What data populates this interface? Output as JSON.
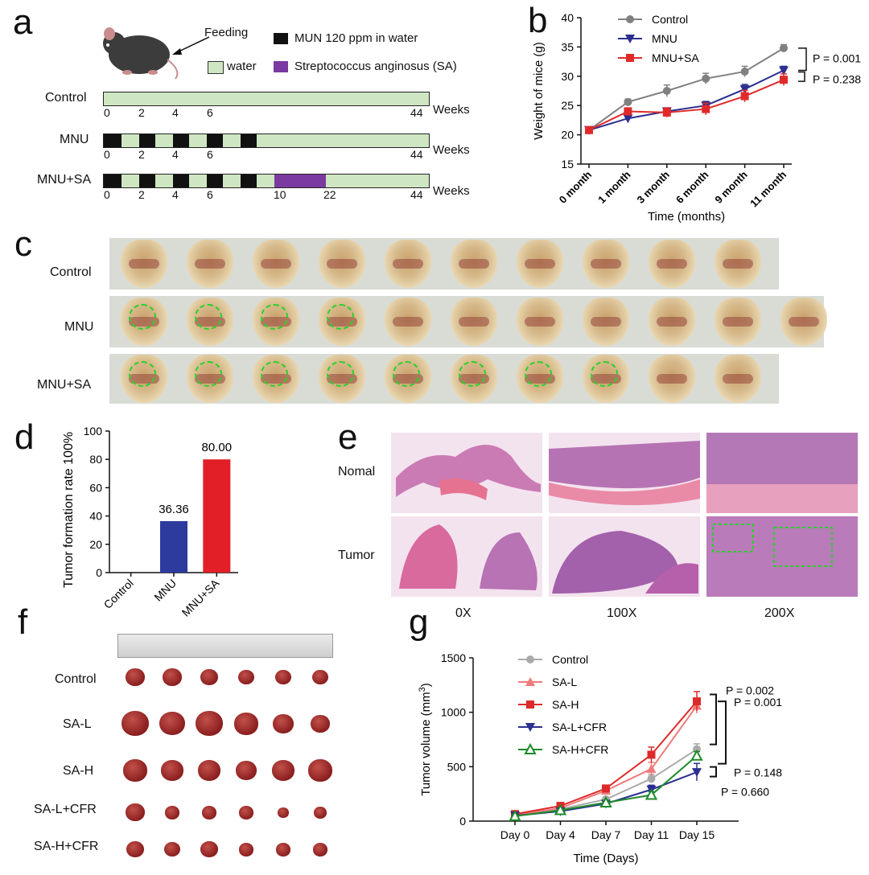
{
  "panels": {
    "a": "a",
    "b": "b",
    "c": "c",
    "d": "d",
    "e": "e",
    "f": "f",
    "g": "g"
  },
  "panel_a": {
    "feeding": "Feeding",
    "legend": {
      "mun": "MUN 120 ppm in water",
      "water": "water",
      "sa": "Streptococcus anginosus (SA)"
    },
    "rows": [
      {
        "name": "Control",
        "ticks": [
          "0",
          "2",
          "4",
          "6",
          "44"
        ],
        "weeks": "Weeks"
      },
      {
        "name": "MNU",
        "ticks": [
          "0",
          "2",
          "4",
          "6",
          "44"
        ],
        "weeks": "Weeks"
      },
      {
        "name": "MNU+SA",
        "ticks": [
          "0",
          "2",
          "4",
          "6",
          "10",
          "22",
          "44"
        ],
        "weeks": "Weeks"
      }
    ],
    "colors": {
      "water": "#cfe6c3",
      "mun": "#111111",
      "sa": "#7a3aa0"
    }
  },
  "panel_c": {
    "rows": [
      "Control",
      "MNU",
      "MNU+SA"
    ]
  },
  "panel_e": {
    "rows": [
      "Nomal",
      "Tumor"
    ],
    "cols": [
      "0X",
      "100X",
      "200X"
    ]
  },
  "panel_f": {
    "rows": [
      "Control",
      "SA-L",
      "SA-H",
      "SA-L+CFR",
      "SA-H+CFR"
    ]
  },
  "chart_data": [
    {
      "id": "b",
      "type": "line",
      "xlabel": "Time (months)",
      "ylabel": "Weight of mice (g)",
      "categories": [
        "0 month",
        "1 month",
        "3 month",
        "6 month",
        "9 month",
        "11 month"
      ],
      "ylim": [
        15,
        40
      ],
      "yticks": [
        "15",
        "20",
        "25",
        "30",
        "35",
        "40"
      ],
      "legend_position": "top-left",
      "series": [
        {
          "name": "Control",
          "color": "#808080",
          "marker": "circle",
          "values": [
            20.8,
            25.6,
            27.5,
            29.6,
            30.8,
            34.8
          ],
          "errors": [
            0.3,
            0.5,
            1.0,
            0.9,
            0.9,
            0.6
          ]
        },
        {
          "name": "MNU",
          "color": "#2b2f8f",
          "marker": "triangle-down",
          "values": [
            20.8,
            22.8,
            24.0,
            25.0,
            27.8,
            31.0
          ],
          "errors": [
            0.3,
            0.5,
            0.6,
            0.7,
            0.8,
            0.7
          ]
        },
        {
          "name": "MNU+SA",
          "color": "#e02a2a",
          "marker": "square",
          "values": [
            20.8,
            24.0,
            23.8,
            24.4,
            26.6,
            29.4
          ],
          "errors": [
            0.3,
            0.6,
            0.8,
            1.0,
            1.0,
            1.0
          ]
        }
      ],
      "annotations": [
        "P = 0.001",
        "P = 0.238"
      ]
    },
    {
      "id": "d",
      "type": "bar",
      "ylabel": "Tumor formation rate 100%",
      "categories": [
        "Control",
        "MNU",
        "MNU+SA"
      ],
      "values": [
        0,
        36.36,
        80.0
      ],
      "value_labels": [
        "",
        "36.36",
        "80.00"
      ],
      "colors": [
        "#2d3a9e",
        "#2d3a9e",
        "#e21f26"
      ],
      "ylim": [
        0,
        100
      ],
      "yticks": [
        "0",
        "20",
        "40",
        "60",
        "80",
        "100"
      ]
    },
    {
      "id": "g",
      "type": "line",
      "xlabel": "Time (Days)",
      "ylabel": "Tumor volume (mm",
      "ylabel_sup": "3",
      "ylabel_end": ")",
      "categories": [
        "Day 0",
        "Day 4",
        "Day 7",
        "Day 11",
        "Day 15"
      ],
      "ylim": [
        0,
        1500
      ],
      "yticks": [
        "0",
        "500",
        "1000",
        "1500"
      ],
      "legend_position": "top-left",
      "series": [
        {
          "name": "Control",
          "color": "#aaaaaa",
          "marker": "circle",
          "values": [
            60,
            110,
            200,
            390,
            660
          ],
          "errors": [
            10,
            15,
            20,
            40,
            50
          ]
        },
        {
          "name": "SA-L",
          "color": "#ef7a7a",
          "marker": "triangle-up",
          "values": [
            55,
            120,
            280,
            480,
            1060
          ],
          "errors": [
            10,
            15,
            25,
            60,
            70
          ]
        },
        {
          "name": "SA-H",
          "color": "#dd2a2a",
          "marker": "square",
          "values": [
            65,
            140,
            300,
            610,
            1100
          ],
          "errors": [
            10,
            15,
            25,
            70,
            90
          ]
        },
        {
          "name": "SA-L+CFR",
          "color": "#2b2f8f",
          "marker": "triangle-down",
          "values": [
            50,
            90,
            160,
            290,
            450
          ],
          "errors": [
            10,
            12,
            20,
            40,
            80
          ]
        },
        {
          "name": "SA-H+CFR",
          "color": "#1d8a2a",
          "marker": "triangle-up-open",
          "values": [
            45,
            100,
            170,
            240,
            600
          ],
          "errors": [
            10,
            12,
            20,
            30,
            40
          ]
        }
      ],
      "annotations": [
        "P = 0.002",
        "P = 0.001",
        "P = 0.148",
        "P = 0.660"
      ]
    }
  ]
}
